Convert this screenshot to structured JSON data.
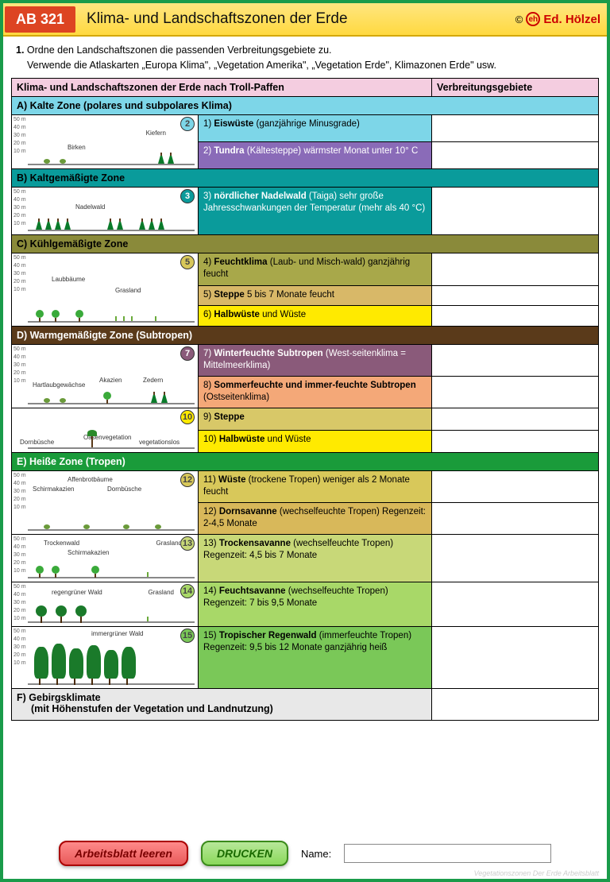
{
  "header": {
    "badge": "AB 321",
    "title": "Klima- und Landschaftszonen der Erde",
    "copyright": "©",
    "brand": "Ed. Hölzel"
  },
  "instructions": {
    "line1_num": "1.",
    "line1": "Ordne den Landschaftszonen die passenden Verbreitungsgebiete zu.",
    "line2": "Verwende die Atlaskarten „Europa Klima\", „Vegetation Amerika\", „Vegetation Erde\", Klimazonen Erde\" usw."
  },
  "table": {
    "header_left": "Klima- und Landschaftszonen der Erde nach Troll-Paffen",
    "header_right": "Verbreitungsgebiete"
  },
  "colors": {
    "c1": "#7dd6e8",
    "c2": "#8a6bb8",
    "c3": "#0a9b9b",
    "c4": "#a8a84a",
    "c5": "#d8b868",
    "c6": "#ffea00",
    "c7": "#8a5a7a",
    "c8": "#f4a878",
    "c9": "#d8c868",
    "c10": "#ffea00",
    "c11": "#d8c85a",
    "c12": "#d8b85a",
    "c13": "#c8d878",
    "c14": "#a8d868",
    "c15": "#7ac858"
  },
  "zones": {
    "a": {
      "title": "A) Kalte Zone (polares und subpolares Klima)",
      "badge": "2",
      "diagram_labels": {
        "l1": "Kiefern",
        "l2": "Birken"
      },
      "rows": [
        {
          "n": "1)",
          "bold": "Eiswüste",
          "rest": "(ganzjährige Minusgrade)",
          "bg": "c1"
        },
        {
          "n": "2)",
          "bold": "Tundra",
          "rest": "(Kältesteppe) wärmster Monat unter 10° C",
          "bg": "c2",
          "fg": "#fff"
        }
      ]
    },
    "b": {
      "title": "B) Kaltgemäßigte Zone",
      "badge": "3",
      "diagram_labels": {
        "l1": "Nadelwald"
      },
      "rows": [
        {
          "n": "3)",
          "bold": "nördlicher Nadelwald",
          "rest": "(Taiga) sehr große Jahresschwankungen der Temperatur (mehr als 40 °C)",
          "bg": "c3",
          "fg": "#fff"
        }
      ]
    },
    "c": {
      "title": "C) Kühlgemäßigte Zone",
      "badge": "5",
      "diagram_labels": {
        "l1": "Laubbäume",
        "l2": "Grasland"
      },
      "rows": [
        {
          "n": "4)",
          "bold": "Feuchtklima",
          "rest": "(Laub- und Misch-wald) ganzjährig feucht",
          "bg": "c4"
        },
        {
          "n": "5)",
          "bold": "Steppe",
          "rest": "5 bis 7 Monate feucht",
          "bg": "c5"
        },
        {
          "n": "6)",
          "bold": "Halbwüste",
          "rest": "und Wüste",
          "bg": "c6"
        }
      ]
    },
    "d": {
      "title": "D) Warmgemäßigte Zone (Subtropen)",
      "badge1": "7",
      "badge2": "10",
      "diagram_labels": {
        "l1": "Hartlaubgewächse",
        "l2": "Akazien",
        "l3": "Zedern",
        "l4": "Dornbüsche",
        "l5": "Oasenvegetation",
        "l6": "vegetationslos"
      },
      "rows": [
        {
          "n": "7)",
          "bold": "Winterfeuchte Subtropen",
          "rest": "(West-seitenklima = Mittelmeerklima)",
          "bg": "c7",
          "fg": "#fff"
        },
        {
          "n": "8)",
          "bold": "Sommerfeuchte und immer-feuchte Subtropen",
          "rest": "(Ostseitenklima)",
          "bg": "c8"
        },
        {
          "n": "9)",
          "bold": "Steppe",
          "rest": "",
          "bg": "c9"
        },
        {
          "n": "10)",
          "bold": "Halbwüste",
          "rest": "und Wüste",
          "bg": "c10"
        }
      ]
    },
    "e": {
      "title": "E) Heiße Zone (Tropen)",
      "badges": [
        "12",
        "13",
        "14",
        "15"
      ],
      "diagram_labels": {
        "d1a": "Affenbrotbäume",
        "d1b": "Schirmakazien",
        "d1c": "Dornbüsche",
        "d2a": "Trockenwald",
        "d2b": "Schirmakazien",
        "d2c": "Grasland",
        "d3a": "regengrüner Wald",
        "d3b": "Grasland",
        "d4a": "immergrüner Wald"
      },
      "rows": [
        {
          "n": "11)",
          "bold": "Wüste",
          "rest": "(trockene Tropen) weniger als 2 Monate feucht",
          "bg": "c11"
        },
        {
          "n": "12)",
          "bold": "Dornsavanne",
          "rest": "(wechselfeuchte Tropen) Regenzeit: 2-4,5 Monate",
          "bg": "c12"
        },
        {
          "n": "13)",
          "bold": "Trockensavanne",
          "rest": "(wechselfeuchte Tropen) Regenzeit: 4,5 bis 7 Monate",
          "bg": "c13"
        },
        {
          "n": "14)",
          "bold": "Feuchtsavanne",
          "rest": "(wechselfeuchte Tropen) Regenzeit: 7 bis 9,5 Monate",
          "bg": "c14"
        },
        {
          "n": "15)",
          "bold": "Tropischer Regenwald",
          "rest": "(immerfeuchte Tropen) Regenzeit: 9,5 bis 12 Monate ganzjährig heiß",
          "bg": "c15"
        }
      ]
    },
    "f": {
      "title": "F) Gebirgsklimate",
      "sub": "(mit Höhenstufen der Vegetation und Landnutzung)"
    }
  },
  "yaxis": [
    "50 m",
    "40 m",
    "30 m",
    "20 m",
    "10 m"
  ],
  "footer": {
    "btn_clear": "Arbeitsblatt leeren",
    "btn_print": "DRUCKEN",
    "name_label": "Name:",
    "name_value": ""
  },
  "watermark": "Vegetationszonen Der Erde Arbeitsblatt"
}
